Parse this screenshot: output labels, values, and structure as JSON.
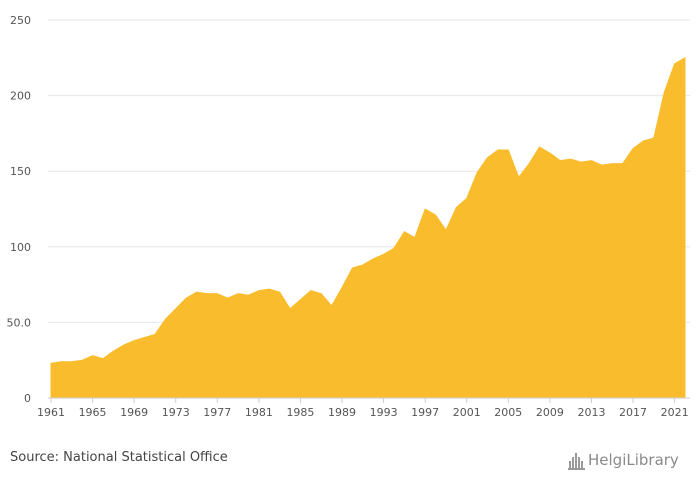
{
  "chart_data": {
    "type": "area",
    "title": "",
    "xlabel": "",
    "ylabel": "",
    "ylim": [
      0,
      250
    ],
    "y_ticks": [
      0,
      50,
      100,
      150,
      200,
      250
    ],
    "y_tick_labels": [
      "0",
      "50.0",
      "100",
      "150",
      "200",
      "250"
    ],
    "x_ticks": [
      1961,
      1965,
      1969,
      1973,
      1977,
      1981,
      1985,
      1989,
      1993,
      1997,
      2001,
      2005,
      2009,
      2013,
      2017,
      2021
    ],
    "grid": "horizontal",
    "color": "#F9BC2C",
    "x": [
      1961,
      1962,
      1963,
      1964,
      1965,
      1966,
      1967,
      1968,
      1969,
      1970,
      1971,
      1972,
      1973,
      1974,
      1975,
      1976,
      1977,
      1978,
      1979,
      1980,
      1981,
      1982,
      1983,
      1984,
      1985,
      1986,
      1987,
      1988,
      1989,
      1990,
      1991,
      1992,
      1993,
      1994,
      1995,
      1996,
      1997,
      1998,
      1999,
      2000,
      2001,
      2002,
      2003,
      2004,
      2005,
      2006,
      2007,
      2008,
      2009,
      2010,
      2011,
      2012,
      2013,
      2014,
      2015,
      2016,
      2017,
      2018,
      2019,
      2020,
      2021,
      2022
    ],
    "values": [
      23,
      24,
      24,
      25,
      28,
      26,
      31,
      35,
      38,
      40,
      42,
      52,
      59,
      66,
      70,
      69,
      69,
      66,
      69,
      68,
      71,
      72,
      70,
      59,
      65,
      71,
      69,
      61,
      73,
      86,
      88,
      92,
      95,
      99,
      110,
      106,
      125,
      121,
      111,
      126,
      132,
      149,
      159,
      164,
      164,
      146,
      155,
      166,
      162,
      157,
      158,
      156,
      157,
      154,
      155,
      155,
      165,
      170,
      172,
      202,
      221,
      225
    ]
  },
  "footer": {
    "source": "Source: National Statistical Office",
    "brand": "HelgiLibrary"
  }
}
